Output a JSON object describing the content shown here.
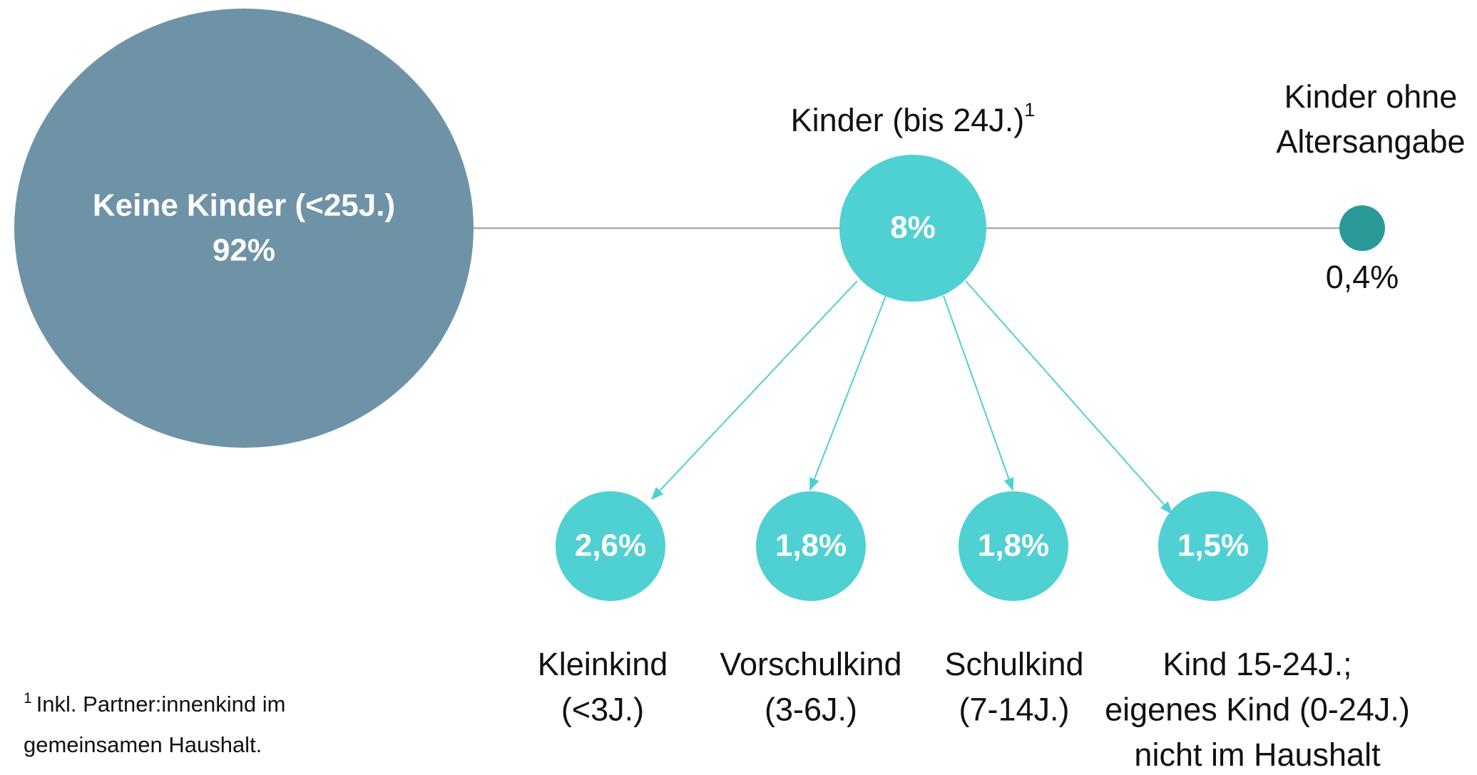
{
  "root": {
    "label": "Keine Kinder (<25J.)",
    "value": "92%"
  },
  "children_group": {
    "label": "Kinder (bis 24J.)",
    "footnote_mark": "1",
    "value": "8%"
  },
  "unknown": {
    "label_lines": [
      "Kinder ohne",
      "Altersangabe"
    ],
    "value": "0,4%"
  },
  "subgroups": [
    {
      "value": "2,6%",
      "label_lines": [
        "Kleinkind",
        "(<3J.)"
      ]
    },
    {
      "value": "1,8%",
      "label_lines": [
        "Vorschulkind",
        "(3-6J.)"
      ]
    },
    {
      "value": "1,8%",
      "label_lines": [
        "Schulkind",
        "(7-14J.)"
      ]
    },
    {
      "value": "1,5%",
      "label_lines": [
        "Kind 15-24J.;",
        "eigenes Kind (0-24J.)",
        "nicht im Haushalt"
      ]
    }
  ],
  "footnote": {
    "mark": "1",
    "lines": [
      "Inkl. Partner:innenkind im",
      "gemeinsamen Haushalt."
    ]
  }
}
